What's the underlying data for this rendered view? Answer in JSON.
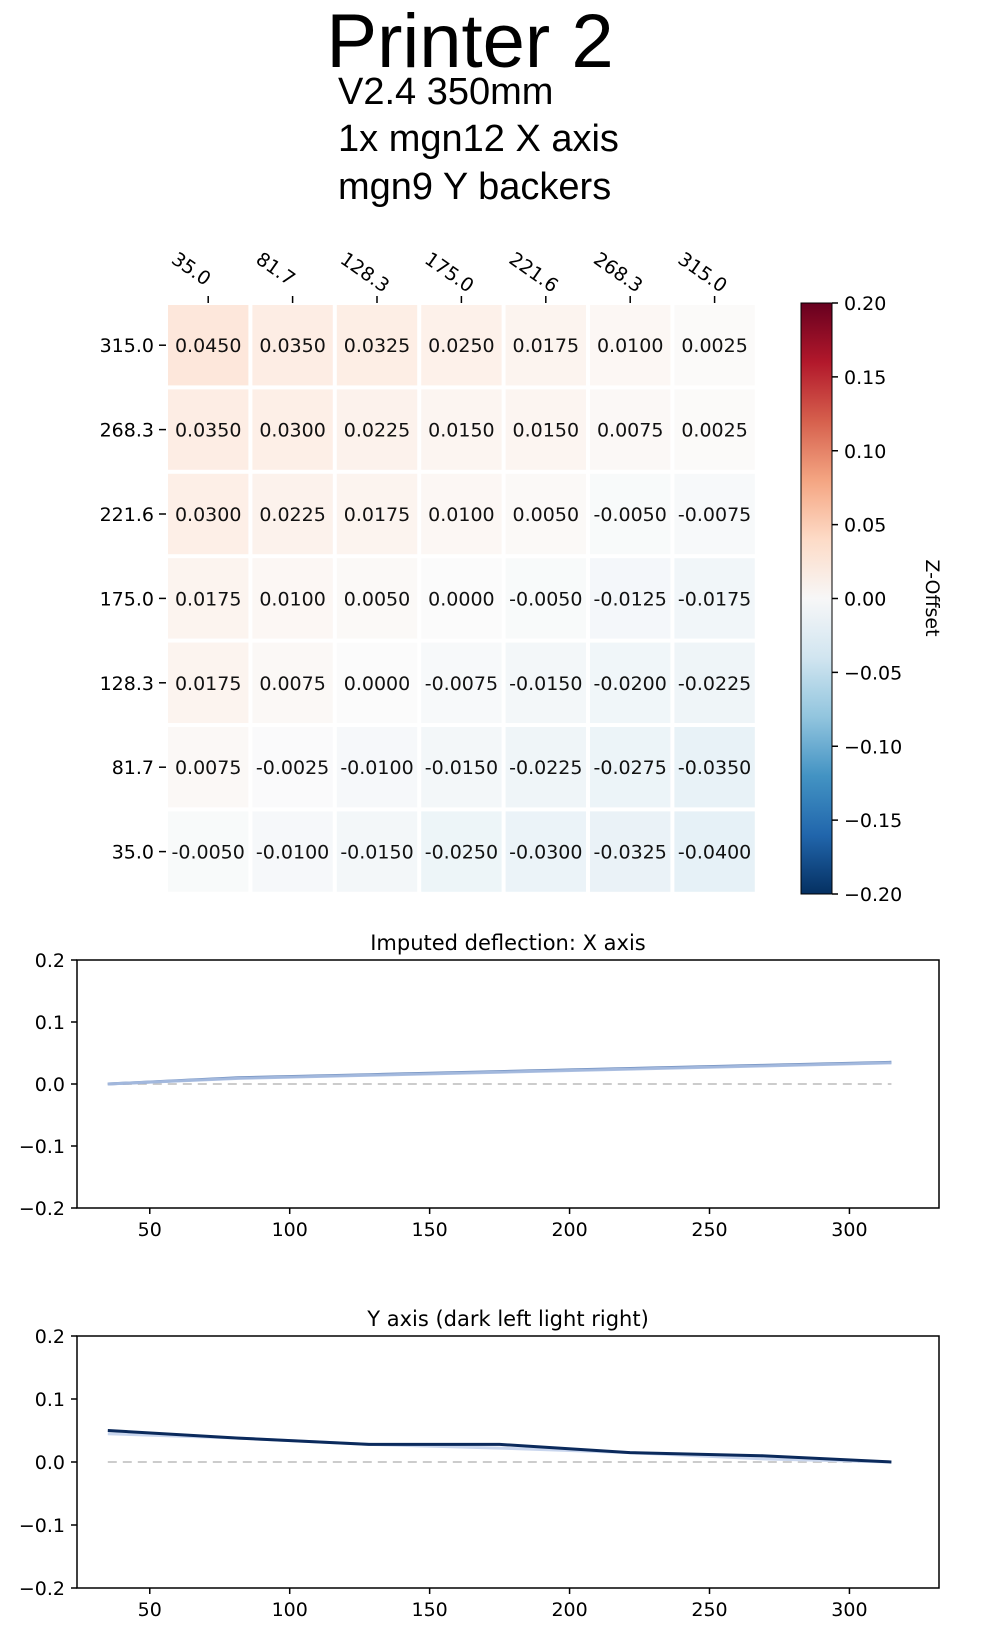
{
  "header": {
    "title": "Printer 2",
    "lines": [
      "V2.4 350mm",
      "1x mgn12 X axis",
      "mgn9 Y backers"
    ]
  },
  "chart_data": [
    {
      "type": "heatmap",
      "x_ticks": [
        "35.0",
        "81.7",
        "128.3",
        "175.0",
        "221.6",
        "268.3",
        "315.0"
      ],
      "y_ticks": [
        "315.0",
        "268.3",
        "221.6",
        "175.0",
        "128.3",
        "81.7",
        "35.0"
      ],
      "values": [
        [
          0.045,
          0.035,
          0.0325,
          0.025,
          0.0175,
          0.01,
          0.0025
        ],
        [
          0.035,
          0.03,
          0.0225,
          0.015,
          0.015,
          0.0075,
          0.0025
        ],
        [
          0.03,
          0.0225,
          0.0175,
          0.01,
          0.005,
          -0.005,
          -0.0075
        ],
        [
          0.0175,
          0.01,
          0.005,
          0.0,
          -0.005,
          -0.0125,
          -0.0175
        ],
        [
          0.0175,
          0.0075,
          0.0,
          -0.0075,
          -0.015,
          -0.02,
          -0.0225
        ],
        [
          0.0075,
          -0.0025,
          -0.01,
          -0.015,
          -0.0225,
          -0.0275,
          -0.035
        ],
        [
          -0.005,
          -0.01,
          -0.015,
          -0.025,
          -0.03,
          -0.0325,
          -0.04
        ]
      ],
      "labels": [
        [
          "0.0450",
          "0.0350",
          "0.0325",
          "0.0250",
          "0.0175",
          "0.0100",
          "0.0025"
        ],
        [
          "0.0350",
          "0.0300",
          "0.0225",
          "0.0150",
          "0.0150",
          "0.0075",
          "0.0025"
        ],
        [
          "0.0300",
          "0.0225",
          "0.0175",
          "0.0100",
          "0.0050",
          "-0.0050",
          "-0.0075"
        ],
        [
          "0.0175",
          "0.0100",
          "0.0050",
          "0.0000",
          "-0.0050",
          "-0.0125",
          "-0.0175"
        ],
        [
          "0.0175",
          "0.0075",
          "0.0000",
          "-0.0075",
          "-0.0150",
          "-0.0200",
          "-0.0225"
        ],
        [
          "0.0075",
          "-0.0025",
          "-0.0100",
          "-0.0150",
          "-0.0225",
          "-0.0275",
          "-0.0350"
        ],
        [
          "-0.0050",
          "-0.0100",
          "-0.0150",
          "-0.0250",
          "-0.0300",
          "-0.0325",
          "-0.0400"
        ]
      ],
      "colorbar": {
        "label": "Z-Offset",
        "range": [
          -0.2,
          0.2
        ],
        "ticks": [
          "0.20",
          "0.15",
          "0.10",
          "0.05",
          "0.00",
          "−0.05",
          "−0.10",
          "−0.15",
          "−0.20"
        ],
        "colormap": "RdBu_r"
      }
    },
    {
      "type": "line",
      "title": "Imputed deflection: X axis",
      "xlim": [
        24,
        332
      ],
      "ylim": [
        -0.2,
        0.2
      ],
      "x_ticks": [
        "50",
        "100",
        "150",
        "200",
        "250",
        "300"
      ],
      "y_ticks": [
        "0.2",
        "0.1",
        "0.0",
        "−0.1",
        "−0.2"
      ],
      "series": [
        {
          "color": "#2c5aa0",
          "opacity": 0.7,
          "x": [
            35.0,
            81.7,
            128.3,
            175.0,
            221.6,
            268.3,
            315.0
          ],
          "y": [
            0.0,
            0.01,
            0.015,
            0.02,
            0.025,
            0.03,
            0.035
          ]
        },
        {
          "color": "#a8bce0",
          "opacity": 0.9,
          "x": [
            35.0,
            81.7,
            128.3,
            175.0,
            221.6,
            268.3,
            315.0
          ],
          "y": [
            0.0,
            0.009,
            0.014,
            0.019,
            0.024,
            0.029,
            0.034
          ]
        }
      ],
      "reference_line": {
        "y": 0.0,
        "style": "dashed",
        "color": "#cccccc"
      }
    },
    {
      "type": "line",
      "title": "Y axis (dark left light right)",
      "xlim": [
        24,
        332
      ],
      "ylim": [
        -0.2,
        0.2
      ],
      "x_ticks": [
        "50",
        "100",
        "150",
        "200",
        "250",
        "300"
      ],
      "y_ticks": [
        "0.2",
        "0.1",
        "0.0",
        "−0.1",
        "−0.2"
      ],
      "series": [
        {
          "color": "#c9d6ee",
          "opacity": 1,
          "x": [
            35.0,
            81.7,
            128.3,
            175.0,
            221.6,
            268.3,
            315.0
          ],
          "y": [
            0.045,
            0.038,
            0.028,
            0.022,
            0.015,
            0.005,
            0.0
          ]
        },
        {
          "color": "#0b2a5c",
          "opacity": 1,
          "x": [
            35.0,
            81.7,
            128.3,
            175.0,
            221.6,
            268.3,
            315.0
          ],
          "y": [
            0.05,
            0.038,
            0.028,
            0.028,
            0.015,
            0.01,
            0.0
          ]
        }
      ],
      "reference_line": {
        "y": 0.0,
        "style": "dashed",
        "color": "#cccccc"
      }
    }
  ]
}
